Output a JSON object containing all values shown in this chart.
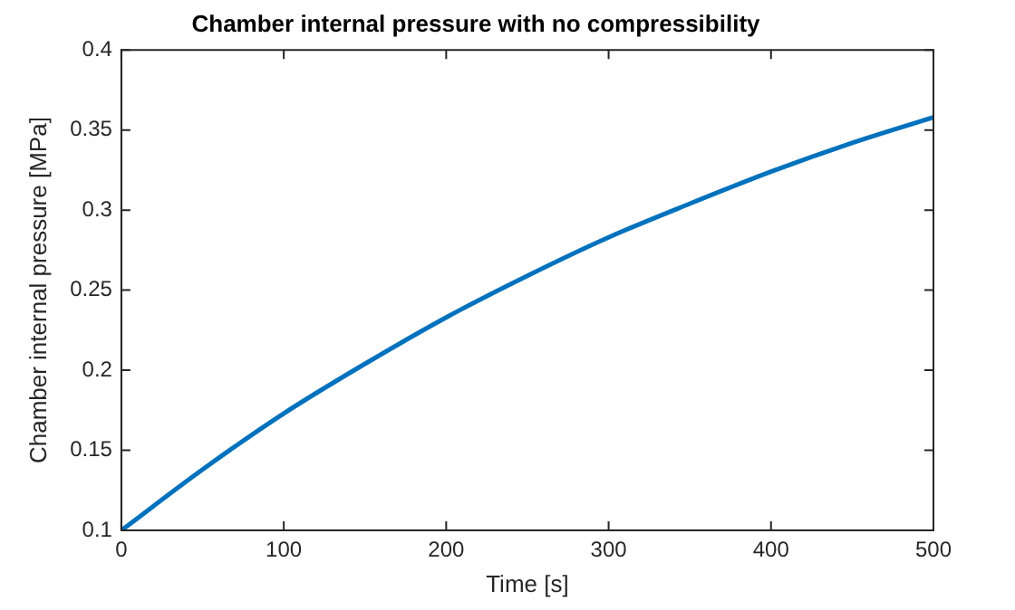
{
  "chart_data": {
    "type": "line",
    "title": "Chamber internal pressure with no compressibility",
    "xlabel": "Time [s]",
    "ylabel": "Chamber internal pressure [MPa]",
    "x": [
      0,
      50,
      100,
      150,
      200,
      250,
      300,
      350,
      400,
      450,
      500
    ],
    "series": [
      {
        "color": "#0072bd",
        "values": [
          0.1,
          0.138,
          0.173,
          0.204,
          0.233,
          0.259,
          0.283,
          0.304,
          0.324,
          0.342,
          0.358
        ]
      }
    ],
    "xlim": [
      0,
      500
    ],
    "xticks": [
      0,
      100,
      200,
      300,
      400,
      500
    ],
    "ylim": [
      0.1,
      0.4
    ],
    "yticks": [
      0.1,
      0.15,
      0.2,
      0.25,
      0.3,
      0.35,
      0.4
    ],
    "grid": false,
    "legend": false,
    "marker": "none",
    "line_style": "solid"
  }
}
